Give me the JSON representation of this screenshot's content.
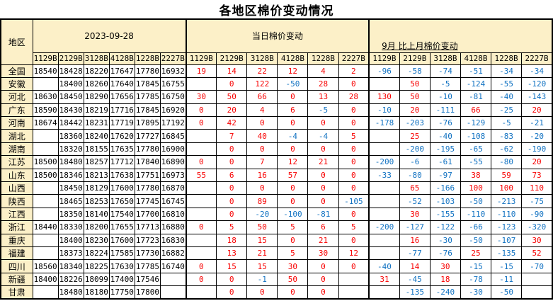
{
  "title": "各地区棉价变动情况",
  "colors": {
    "header_bg": "#FCF0C8",
    "positive_change_text": "#F80000",
    "negative_change_text": "#1172C2",
    "price_text": "#000000",
    "grid": "#000000"
  },
  "table": {
    "region_header": "地区",
    "groups": [
      {
        "label": "2023-09-28"
      },
      {
        "label": "当日棉价变动"
      },
      {
        "label": "9月 比上月棉价变动"
      }
    ],
    "grades": [
      "1129B",
      "2129B",
      "3128B",
      "4128B",
      "1228B",
      "2227B"
    ],
    "rows": [
      {
        "region": "全国",
        "prices": [
          "18540",
          "18428",
          "18220",
          "17647",
          "17780",
          "16932"
        ],
        "daily": [
          "19",
          "14",
          "22",
          "12",
          "4",
          "2"
        ],
        "monthly": [
          "-96",
          "-58",
          "-74",
          "-51",
          "-34",
          "-34"
        ]
      },
      {
        "region": "安徽",
        "prices": [
          "",
          "18400",
          "18260",
          "17640",
          "17845",
          "16755"
        ],
        "daily": [
          "",
          "0",
          "122",
          "-50",
          "28",
          "0"
        ],
        "monthly": [
          "",
          "50",
          "-5",
          "-124",
          "-55",
          "-120"
        ]
      },
      {
        "region": "河北",
        "prices": [
          "18630",
          "18450",
          "18290",
          "17656",
          "17785",
          "16750"
        ],
        "daily": [
          "30",
          "50",
          "66",
          "0",
          "13",
          "28"
        ],
        "monthly": [
          "130",
          "50",
          "-10",
          "-81",
          "-40",
          "-143"
        ]
      },
      {
        "region": "广东",
        "prices": [
          "18590",
          "18430",
          "18219",
          "17716",
          "17845",
          "16920"
        ],
        "daily": [
          "0",
          "20",
          "4",
          "6",
          "-5",
          "0"
        ],
        "monthly": [
          "-10",
          "20",
          "-111",
          "66",
          "-25",
          "20"
        ]
      },
      {
        "region": "河南",
        "prices": [
          "18674",
          "18442",
          "18231",
          "17719",
          "17895",
          "17192"
        ],
        "daily": [
          "0",
          "42",
          "0",
          "0",
          "0",
          "0"
        ],
        "monthly": [
          "-178",
          "-203",
          "-76",
          "-129",
          "-5",
          "-21"
        ]
      },
      {
        "region": "湖北",
        "prices": [
          "",
          "18360",
          "18240",
          "17620",
          "17727",
          "16845"
        ],
        "daily": [
          "",
          "7",
          "40",
          "-4",
          "-4",
          "5"
        ],
        "monthly": [
          "",
          "25",
          "-40",
          "-108",
          "-83",
          "-20"
        ]
      },
      {
        "region": "湖南",
        "prices": [
          "",
          "18320",
          "18155",
          "17635",
          "17780",
          "16900"
        ],
        "daily": [
          "",
          "0",
          "0",
          "0",
          "0",
          "0"
        ],
        "monthly": [
          "",
          "-200",
          "-195",
          "-65",
          "-62",
          "-190"
        ]
      },
      {
        "region": "江苏",
        "prices": [
          "18500",
          "18480",
          "18257",
          "17712",
          "17840",
          "16890"
        ],
        "daily": [
          "0",
          "0",
          "7",
          "12",
          "21",
          "0"
        ],
        "monthly": [
          "-200",
          "-6",
          "-61",
          "-55",
          "-80",
          "20"
        ]
      },
      {
        "region": "山东",
        "prices": [
          "18500",
          "18346",
          "18213",
          "17638",
          "17751",
          "16973"
        ],
        "daily": [
          "55",
          "6",
          "16",
          "57",
          "0",
          "0"
        ],
        "monthly": [
          "-33",
          "-80",
          "-97",
          "38",
          "59",
          "73"
        ]
      },
      {
        "region": "山西",
        "prices": [
          "",
          "18450",
          "18129",
          "17600",
          "17780",
          "16870"
        ],
        "daily": [
          "",
          "0",
          "0",
          "0",
          "0",
          "0"
        ],
        "monthly": [
          "",
          "65",
          "-166",
          "100",
          "100",
          "110"
        ]
      },
      {
        "region": "陕西",
        "prices": [
          "",
          "18465",
          "18253",
          "17650",
          "17745",
          "16745"
        ],
        "daily": [
          "",
          "0",
          "89",
          "0",
          "0",
          "-105"
        ],
        "monthly": [
          "",
          "-52",
          "-103",
          "-50",
          "-213",
          "-75"
        ]
      },
      {
        "region": "江西",
        "prices": [
          "",
          "18350",
          "18140",
          "17540",
          "17700",
          "16810"
        ],
        "daily": [
          "",
          "0",
          "-20",
          "-100",
          "-81",
          "0"
        ],
        "monthly": [
          "",
          "30",
          "-155",
          "-110",
          "-110",
          "-90"
        ]
      },
      {
        "region": "浙江",
        "prices": [
          "18440",
          "18330",
          "18200",
          "17655",
          "17713",
          "16880"
        ],
        "daily": [
          "0",
          "5",
          "50",
          "5",
          "6",
          "5"
        ],
        "monthly": [
          "-200",
          "-127",
          "-122",
          "-66",
          "-123",
          "-320"
        ]
      },
      {
        "region": "重庆",
        "prices": [
          "",
          "18400",
          "18230",
          "17600",
          "17723",
          "16830"
        ],
        "daily": [
          "",
          "18",
          "15",
          "0",
          "21",
          "0"
        ],
        "monthly": [
          "",
          "16",
          "-30",
          "-50",
          "-107",
          "30"
        ]
      },
      {
        "region": "福建",
        "prices": [
          "",
          "18373",
          "18224",
          "17585",
          "17730",
          "16882"
        ],
        "daily": [
          "",
          "13",
          "21",
          "5",
          "30",
          "12"
        ],
        "monthly": [
          "",
          "-77",
          "-76",
          "25",
          "-135",
          "52"
        ]
      },
      {
        "region": "四川",
        "prices": [
          "18560",
          "18340",
          "18225",
          "17630",
          "17785",
          "16740"
        ],
        "daily": [
          "0",
          "15",
          "15",
          "30",
          "0",
          "0"
        ],
        "monthly": [
          "-40",
          "14",
          "30",
          "-15",
          "-15",
          "-70"
        ]
      },
      {
        "region": "新疆",
        "prices": [
          "18400",
          "18226",
          "18099",
          "17400",
          "17546",
          ""
        ],
        "daily": [
          "0",
          "0",
          "-1",
          "50",
          "0",
          ""
        ],
        "monthly": [
          "31",
          "-45",
          "18",
          "-78",
          "-11",
          ""
        ]
      },
      {
        "region": "甘肃",
        "prices": [
          "",
          "18480",
          "18180",
          "17750",
          "17800",
          ""
        ],
        "daily": [
          "",
          "0",
          "0",
          "0",
          "0",
          ""
        ],
        "monthly": [
          "",
          "-135",
          "-240",
          "-30",
          "-50",
          ""
        ]
      }
    ]
  }
}
